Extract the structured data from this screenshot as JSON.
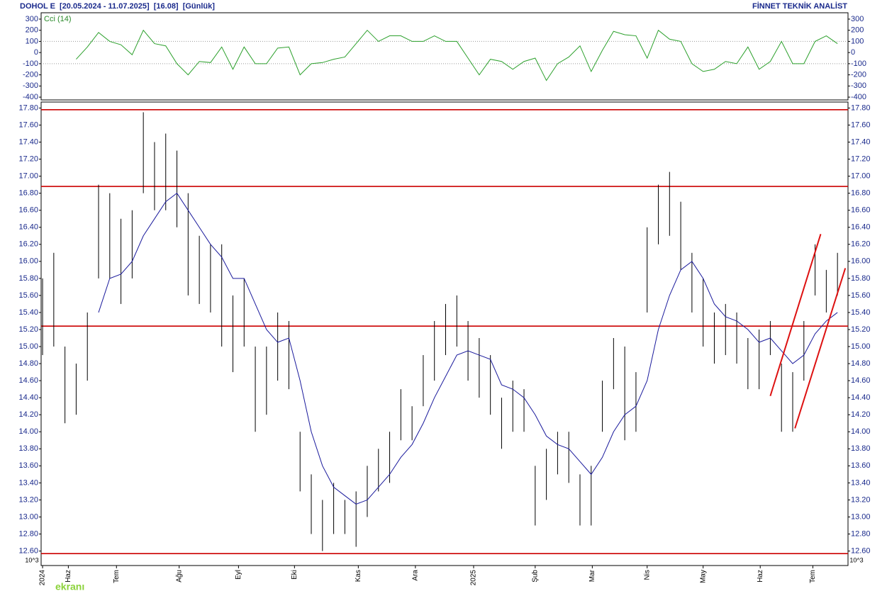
{
  "header": {
    "title": "DOHOL E  [20.05.2024 - 11.07.2025]  [16.08]  [Günlük]",
    "brand": "FİNNET TEKNİK ANALİST",
    "unit_left": "10^3",
    "unit_right": "10^3",
    "watermark": "ekranı"
  },
  "chart_data": [
    {
      "type": "line",
      "title": "Cci (14)",
      "color": "#2ca02c",
      "xlim": [
        -0.13,
        71.94
      ],
      "values": [
        null,
        null,
        null,
        -60,
        50,
        180,
        100,
        70,
        -20,
        200,
        80,
        60,
        -100,
        -200,
        -80,
        -90,
        50,
        -150,
        50,
        -100,
        -100,
        40,
        50,
        -200,
        -100,
        -90,
        -60,
        -40,
        80,
        200,
        100,
        150,
        150,
        100,
        100,
        150,
        100,
        100,
        -50,
        -200,
        -60,
        -80,
        -150,
        -80,
        -50,
        -250,
        -100,
        -40,
        60,
        -170,
        20,
        190,
        160,
        150,
        -50,
        200,
        120,
        100,
        -100,
        -170,
        -150,
        -80,
        -100,
        50,
        -150,
        -80,
        100,
        -100,
        -100,
        100,
        150,
        80
      ],
      "ylim": [
        -425,
        357
      ],
      "yticks": [
        300,
        200,
        100,
        0,
        -100,
        -200,
        -300,
        -400
      ],
      "grid_lines": [
        100,
        -100
      ]
    },
    {
      "type": "ohlc",
      "bar_color": "#000000",
      "xlim": [
        -0.13,
        71.94
      ],
      "high": [
        15.8,
        16.1,
        15.0,
        14.8,
        15.4,
        16.9,
        16.8,
        16.5,
        16.6,
        17.75,
        17.4,
        17.5,
        17.3,
        16.8,
        16.3,
        16.2,
        16.2,
        15.6,
        15.8,
        15.0,
        15.0,
        15.4,
        15.3,
        14.0,
        13.5,
        13.2,
        13.4,
        13.2,
        13.3,
        13.6,
        13.8,
        14.0,
        14.5,
        14.3,
        14.9,
        15.3,
        15.5,
        15.6,
        15.3,
        15.1,
        14.9,
        14.4,
        14.6,
        14.5,
        13.6,
        13.8,
        14.0,
        14.0,
        13.5,
        13.6,
        14.6,
        15.1,
        15.0,
        14.7,
        16.4,
        16.9,
        17.05,
        16.7,
        16.1,
        15.8,
        15.4,
        15.5,
        15.4,
        15.1,
        15.2,
        15.3,
        14.8,
        14.7,
        15.3,
        16.2,
        15.9,
        16.1
      ],
      "low": [
        14.9,
        15.0,
        14.1,
        14.2,
        14.6,
        15.8,
        15.8,
        15.5,
        15.8,
        16.8,
        16.6,
        16.6,
        16.4,
        15.6,
        15.5,
        15.4,
        15.0,
        14.7,
        15.0,
        14.0,
        14.2,
        14.6,
        14.5,
        13.3,
        12.8,
        12.6,
        12.8,
        12.8,
        12.65,
        13.0,
        13.3,
        13.4,
        13.9,
        13.9,
        14.3,
        14.6,
        14.9,
        15.0,
        14.6,
        14.4,
        14.2,
        13.8,
        14.0,
        14.0,
        12.9,
        13.2,
        13.5,
        13.4,
        12.9,
        12.9,
        14.0,
        14.5,
        13.9,
        14.0,
        15.4,
        16.2,
        16.3,
        15.9,
        15.4,
        15.0,
        14.8,
        14.9,
        14.8,
        14.5,
        14.5,
        14.9,
        14.0,
        14.0,
        14.6,
        15.6,
        15.4,
        15.6
      ],
      "ma": {
        "color": "#1a1a9c",
        "values": [
          null,
          null,
          null,
          null,
          null,
          15.4,
          15.8,
          15.85,
          16.0,
          16.3,
          16.5,
          16.7,
          16.8,
          16.6,
          16.4,
          16.2,
          16.05,
          15.8,
          15.8,
          15.5,
          15.2,
          15.05,
          15.1,
          14.6,
          14.0,
          13.6,
          13.35,
          13.25,
          13.15,
          13.2,
          13.35,
          13.5,
          13.7,
          13.85,
          14.1,
          14.4,
          14.65,
          14.9,
          14.95,
          14.9,
          14.85,
          14.55,
          14.5,
          14.4,
          14.2,
          13.95,
          13.85,
          13.8,
          13.65,
          13.5,
          13.7,
          14.0,
          14.2,
          14.3,
          14.6,
          15.2,
          15.6,
          15.9,
          16.0,
          15.8,
          15.5,
          15.35,
          15.3,
          15.2,
          15.05,
          15.1,
          14.95,
          14.8,
          14.9,
          15.15,
          15.3,
          15.4
        ]
      },
      "hlines": {
        "color": "#cc0000",
        "values": [
          17.78,
          16.88,
          15.24,
          12.57
        ]
      },
      "trendlines": {
        "color": "#dd1111",
        "lines": [
          {
            "x": [
              65.0,
              69.5
            ],
            "y": [
              14.42,
              16.32
            ]
          },
          {
            "x": [
              67.2,
              71.7
            ],
            "y": [
              14.04,
              15.92
            ]
          }
        ]
      },
      "ylim": [
        12.43,
        17.87
      ],
      "yticks": [
        {
          "value": 17.8,
          "label": "17.80"
        },
        {
          "value": 17.6,
          "label": "17.60"
        },
        {
          "value": 17.4,
          "label": "17.40"
        },
        {
          "value": 17.2,
          "label": "17.20"
        },
        {
          "value": 17,
          "label": "17.00"
        },
        {
          "value": 16.8,
          "label": "16.80"
        },
        {
          "value": 16.6,
          "label": "16.60"
        },
        {
          "value": 16.4,
          "label": "16.40"
        },
        {
          "value": 16.2,
          "label": "16.20"
        },
        {
          "value": 16,
          "label": "16.00"
        },
        {
          "value": 15.8,
          "label": "15.80"
        },
        {
          "value": 15.6,
          "label": "15.60"
        },
        {
          "value": 15.4,
          "label": "15.40"
        },
        {
          "value": 15.2,
          "label": "15.20"
        },
        {
          "value": 15,
          "label": "15.00"
        },
        {
          "value": 14.8,
          "label": "14.80"
        },
        {
          "value": 14.6,
          "label": "14.60"
        },
        {
          "value": 14.4,
          "label": "14.40"
        },
        {
          "value": 14.2,
          "label": "14.20"
        },
        {
          "value": 14,
          "label": "14.00"
        },
        {
          "value": 13.8,
          "label": "13.80"
        },
        {
          "value": 13.6,
          "label": "13.60"
        },
        {
          "value": 13.4,
          "label": "13.40"
        },
        {
          "value": 13.2,
          "label": "13.20"
        },
        {
          "value": 13,
          "label": "13.00"
        },
        {
          "value": 12.8,
          "label": "12.80"
        },
        {
          "value": 12.6,
          "label": "12.60"
        }
      ],
      "xticks": [
        {
          "value": 0,
          "label": "2024"
        },
        {
          "value": 2.3,
          "label": "Haz"
        },
        {
          "value": 6.6,
          "label": "Tem"
        },
        {
          "value": 12.2,
          "label": "Ağu"
        },
        {
          "value": 17.5,
          "label": "Eyl"
        },
        {
          "value": 22.5,
          "label": "Eki"
        },
        {
          "value": 28.2,
          "label": "Kas"
        },
        {
          "value": 33.3,
          "label": "Ara"
        },
        {
          "value": 38.5,
          "label": "2025"
        },
        {
          "value": 44.0,
          "label": "Şub"
        },
        {
          "value": 49.1,
          "label": "Mar"
        },
        {
          "value": 54.0,
          "label": "Nis"
        },
        {
          "value": 59.0,
          "label": "May"
        },
        {
          "value": 64.1,
          "label": "Haz"
        },
        {
          "value": 68.8,
          "label": "Tem"
        }
      ]
    }
  ]
}
